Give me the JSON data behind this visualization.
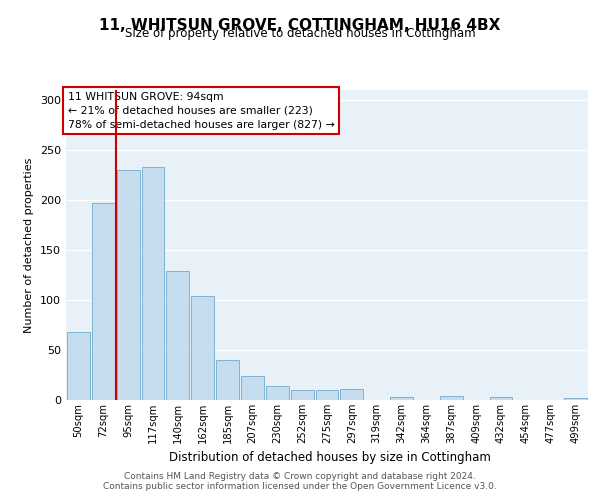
{
  "title": "11, WHITSUN GROVE, COTTINGHAM, HU16 4BX",
  "subtitle": "Size of property relative to detached houses in Cottingham",
  "xlabel": "Distribution of detached houses by size in Cottingham",
  "ylabel": "Number of detached properties",
  "bar_color": "#c6ddf0",
  "bar_edge_color": "#7fb3d3",
  "background_color": "#e8f0f8",
  "grid_color": "#ffffff",
  "annotation_box_color": "#cc0000",
  "property_line_color": "#cc0000",
  "property_label": "11 WHITSUN GROVE: 94sqm",
  "annotation_line1": "← 21% of detached houses are smaller (223)",
  "annotation_line2": "78% of semi-detached houses are larger (827) →",
  "categories": [
    "50sqm",
    "72sqm",
    "95sqm",
    "117sqm",
    "140sqm",
    "162sqm",
    "185sqm",
    "207sqm",
    "230sqm",
    "252sqm",
    "275sqm",
    "297sqm",
    "319sqm",
    "342sqm",
    "364sqm",
    "387sqm",
    "409sqm",
    "432sqm",
    "454sqm",
    "477sqm",
    "499sqm"
  ],
  "values": [
    68,
    197,
    230,
    233,
    129,
    104,
    40,
    24,
    14,
    10,
    10,
    11,
    0,
    3,
    0,
    4,
    0,
    3,
    0,
    0,
    2
  ],
  "ylim": [
    0,
    310
  ],
  "yticks": [
    0,
    50,
    100,
    150,
    200,
    250,
    300
  ],
  "property_bar_index": 2,
  "footer_line1": "Contains HM Land Registry data © Crown copyright and database right 2024.",
  "footer_line2": "Contains public sector information licensed under the Open Government Licence v3.0."
}
